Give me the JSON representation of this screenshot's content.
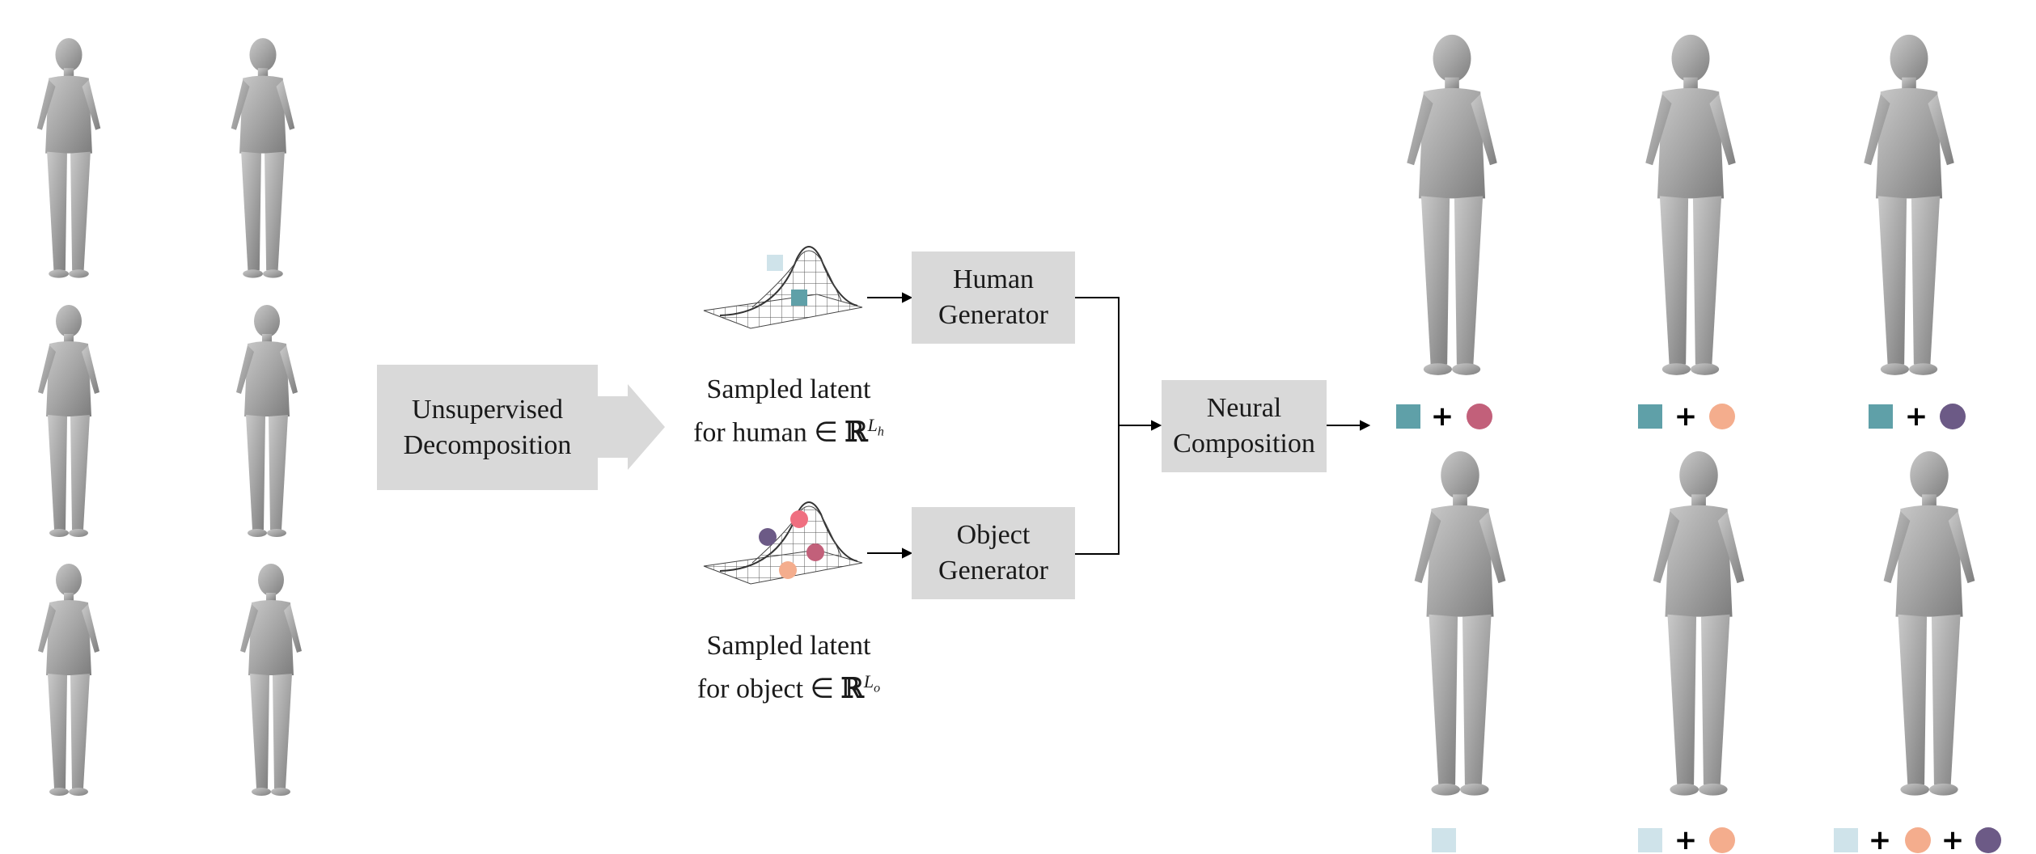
{
  "diagram": {
    "decomposition_box": {
      "line1": "Unsupervised",
      "line2": "Decomposition"
    },
    "human_generator": {
      "line1": "Human",
      "line2": "Generator"
    },
    "object_generator": {
      "line1": "Object",
      "line2": "Generator"
    },
    "neural_composition": {
      "line1": "Neural",
      "line2": "Composition"
    },
    "human_latent": {
      "line1": "Sampled latent",
      "line2_prefix": "for human ∈ ",
      "space": "ℝ",
      "dim": "L",
      "dim_sub": "h"
    },
    "object_latent": {
      "line1": "Sampled latent",
      "line2_prefix": "for object ∈ ",
      "space": "ℝ",
      "dim": "L",
      "dim_sub": "o"
    },
    "plus_sign": "+"
  },
  "colors": {
    "box_fill": "#d9d9d9",
    "mesh_fill": "#9a9a9a",
    "teal_square": "#5fa0a8",
    "light_blue_square": "#cfe3ea",
    "magenta_circle": "#c2607a",
    "peach_circle": "#f4ad8d",
    "purple_circle": "#6c5a86",
    "pink_circle": "#ef6f80"
  },
  "legends": {
    "top_row": [
      [
        "teal-square",
        "magenta-circle"
      ],
      [
        "teal-square",
        "peach-circle"
      ],
      [
        "teal-square",
        "purple-circle"
      ]
    ],
    "bottom_row": [
      [
        "light-blue-square"
      ],
      [
        "light-blue-square",
        "peach-circle"
      ],
      [
        "light-blue-square",
        "peach-circle",
        "purple-circle"
      ]
    ]
  }
}
